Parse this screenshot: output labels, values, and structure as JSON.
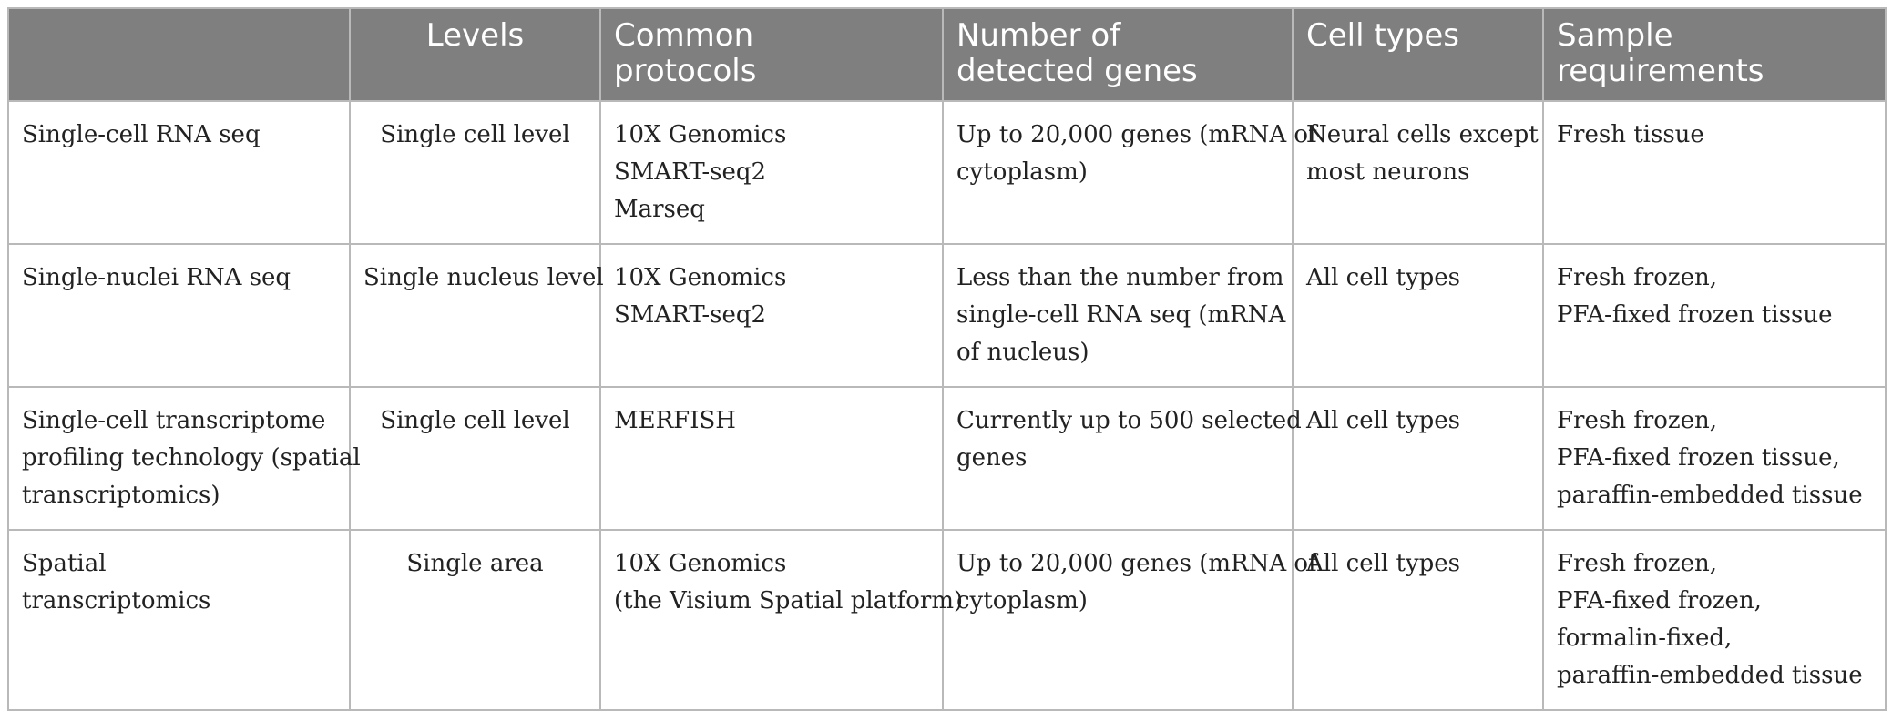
{
  "table": {
    "headers": [
      "",
      "Levels",
      "Common protocols",
      "Number of detected genes",
      "Cell types",
      "Sample requirements"
    ],
    "header_lines": [
      [
        ""
      ],
      [
        "Levels"
      ],
      [
        "Common",
        "protocols"
      ],
      [
        "Number of",
        "detected genes"
      ],
      [
        "Cell types"
      ],
      [
        "Sample",
        "requirements"
      ]
    ],
    "rows": [
      {
        "method": [
          "Single-cell RNA seq"
        ],
        "level": [
          "Single cell level"
        ],
        "protocols": [
          "10X Genomics",
          "SMART-seq2",
          "Marseq"
        ],
        "genes": [
          "Up to 20,000 genes (mRNA of",
          "cytoplasm)"
        ],
        "cell_types": [
          "Neural cells except",
          "most neurons"
        ],
        "samples": [
          "Fresh tissue"
        ]
      },
      {
        "method": [
          "Single-nuclei RNA seq"
        ],
        "level": [
          "Single nucleus level"
        ],
        "protocols": [
          "10X Genomics",
          "SMART-seq2"
        ],
        "genes": [
          "Less than the number from",
          "single-cell RNA seq (mRNA",
          "of nucleus)"
        ],
        "cell_types": [
          "All cell types"
        ],
        "samples": [
          "Fresh frozen,",
          "PFA-fixed frozen tissue"
        ]
      },
      {
        "method": [
          "Single-cell transcriptome",
          "profiling technology (spatial",
          "transcriptomics)"
        ],
        "level": [
          "Single cell level"
        ],
        "protocols": [
          "MERFISH"
        ],
        "genes": [
          "Currently up to 500 selected",
          "genes"
        ],
        "cell_types": [
          "All cell types"
        ],
        "samples": [
          "Fresh frozen,",
          "PFA-fixed frozen tissue,",
          "paraffin-embedded tissue"
        ]
      },
      {
        "method": [
          "Spatial",
          "transcriptomics"
        ],
        "level": [
          "Single area"
        ],
        "protocols": [
          "10X Genomics",
          "(the Visium Spatial platform)"
        ],
        "genes": [
          "Up to 20,000 genes (mRNA of",
          "cytoplasm)"
        ],
        "cell_types": [
          "All cell types"
        ],
        "samples": [
          "Fresh frozen,",
          "PFA-fixed frozen,",
          "formalin-fixed,",
          "paraffin-embedded tissue"
        ]
      }
    ]
  },
  "colors": {
    "header_bg": "#7f7f7f",
    "header_text": "#ffffff",
    "grid": "#b9b9b9",
    "body_text": "#222222"
  }
}
